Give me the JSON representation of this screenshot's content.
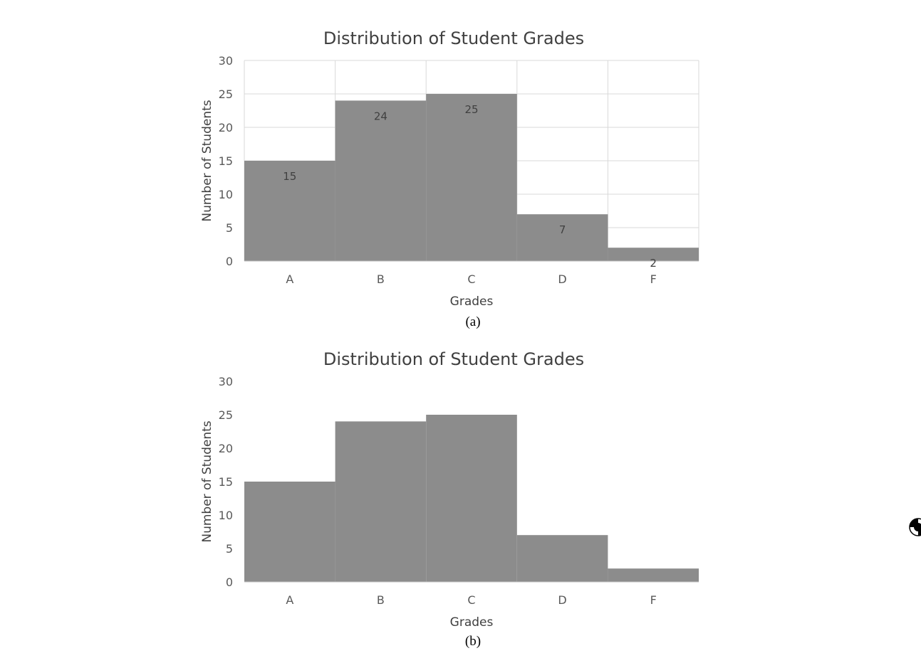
{
  "chart_data": [
    {
      "type": "bar",
      "title": "Distribution of Student Grades",
      "xlabel": "Grades",
      "ylabel": "Number of Students",
      "categories": [
        "A",
        "B",
        "C",
        "D",
        "F"
      ],
      "values": [
        15,
        24,
        25,
        7,
        2
      ],
      "ylim": [
        0,
        30
      ],
      "yticks": [
        0,
        5,
        10,
        15,
        20,
        25,
        30
      ],
      "grid": true,
      "data_labels": true,
      "bar_color": "#8c8c8c",
      "caption": "(a)"
    },
    {
      "type": "bar",
      "title": "Distribution of Student Grades",
      "xlabel": "Grades",
      "ylabel": "Number of Students",
      "categories": [
        "A",
        "B",
        "C",
        "D",
        "F"
      ],
      "values": [
        15,
        24,
        25,
        7,
        2
      ],
      "ylim": [
        0,
        30
      ],
      "yticks": [
        0,
        5,
        10,
        15,
        20,
        25,
        30
      ],
      "grid": false,
      "data_labels": false,
      "bar_color": "#8c8c8c",
      "caption": "(b)"
    }
  ],
  "margin_mark_icon": "registration-mark-icon"
}
